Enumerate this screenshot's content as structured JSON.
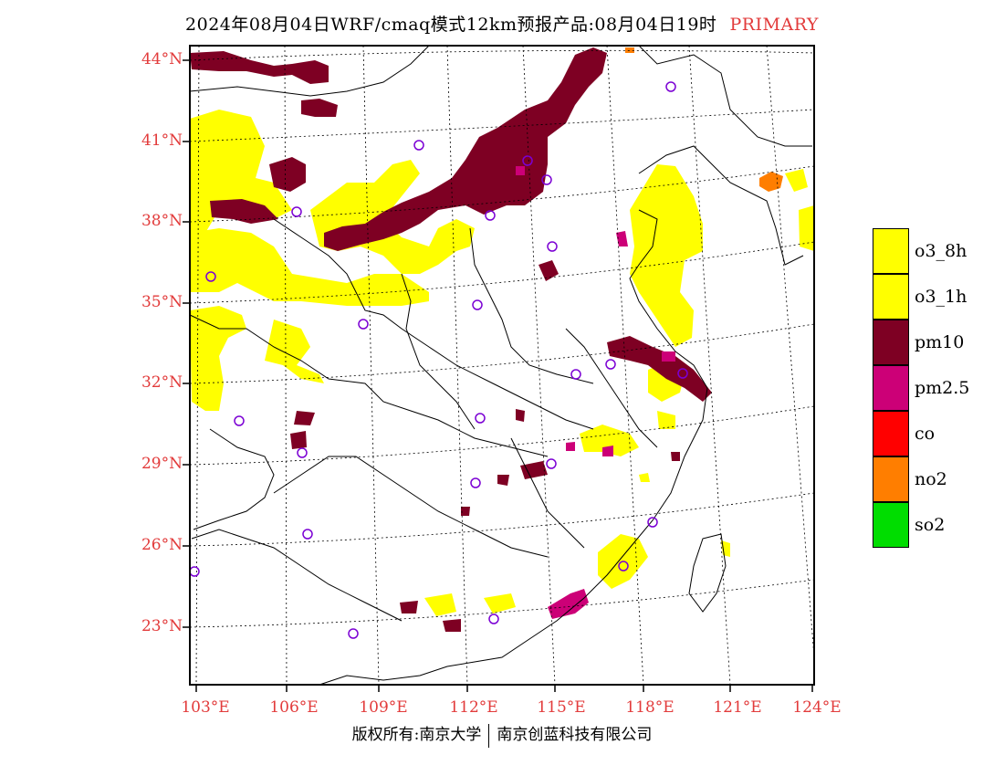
{
  "title": "2024年08月04日WRF/cmaq模式12km预报产品:08月04日19时",
  "title_tag": "PRIMARY",
  "lat_labels": [
    "44°N",
    "41°N",
    "38°N",
    "35°N",
    "32°N",
    "29°N",
    "26°N",
    "23°N"
  ],
  "lon_labels": [
    "103°E",
    "106°E",
    "109°E",
    "112°E",
    "115°E",
    "118°E",
    "121°E",
    "124°E"
  ],
  "legend": [
    {
      "label": "o3_8h",
      "color": "#ffff00"
    },
    {
      "label": "o3_1h",
      "color": "#ffff00"
    },
    {
      "label": "pm10",
      "color": "#7e0023"
    },
    {
      "label": "pm2.5",
      "color": "#cc0077"
    },
    {
      "label": "co",
      "color": "#ff0000"
    },
    {
      "label": "no2",
      "color": "#ff7e00"
    },
    {
      "label": "so2",
      "color": "#00dd00"
    }
  ],
  "footer_left": "版权所有:南京大学",
  "footer_right": "南京创蓝科技有限公司"
}
